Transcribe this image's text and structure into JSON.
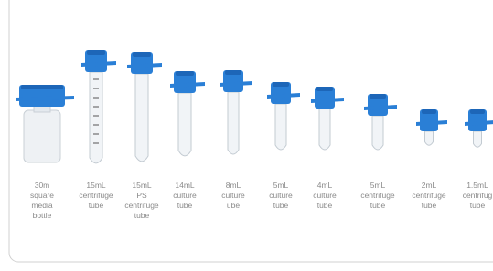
{
  "products": [
    {
      "label": [
        "30m",
        "square",
        "media",
        "bottle"
      ]
    },
    {
      "label": [
        "15mL",
        "centrifuge",
        "tube"
      ]
    },
    {
      "label": [
        "15mL",
        "PS",
        "centrifuge",
        "tube"
      ]
    },
    {
      "label": [
        "14mL",
        "culture",
        "tube"
      ]
    },
    {
      "label": [
        "8mL",
        "culture",
        "ube"
      ]
    },
    {
      "label": [
        "5mL",
        "culture",
        "tube"
      ]
    },
    {
      "label": [
        "4mL",
        "culture",
        "tube"
      ]
    },
    {
      "label": [
        "5mL",
        "centrifuge",
        "tube"
      ]
    },
    {
      "label": [
        "2mL",
        "centrifuge",
        "tube"
      ]
    },
    {
      "label": [
        "1.5mL",
        "centrifug",
        "tube"
      ]
    }
  ]
}
